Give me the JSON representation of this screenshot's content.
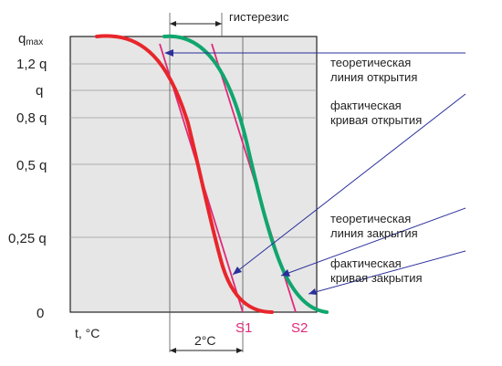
{
  "y_axis": {
    "labels": [
      "q",
      "1,2 q",
      "q",
      "0,8 q",
      "0,5 q",
      "0,25 q",
      "0"
    ],
    "qmax_sub": "max"
  },
  "x_axis": {
    "label": "t, °C"
  },
  "hysteresis_label": "гистерезис",
  "delta_label": "2°C",
  "points": {
    "s1": "S1",
    "s2": "S2"
  },
  "annotations": {
    "theory_open": [
      "теоретическая",
      "линия открытия"
    ],
    "actual_open": [
      "фактическая",
      "кривая открытия"
    ],
    "theory_close": [
      "теоретическая",
      "линия закрытия"
    ],
    "actual_close": [
      "фактическая",
      "кривая закрытия"
    ]
  },
  "colors": {
    "plot_bg": "#e6e6e6",
    "opening_curve": "#e8262b",
    "closing_curve": "#10a66e",
    "theory_lines": "#e0297a",
    "pointer_lines": "#2a2f9b",
    "s_labels": "#e0297a",
    "grid": "#9a9a9a"
  }
}
